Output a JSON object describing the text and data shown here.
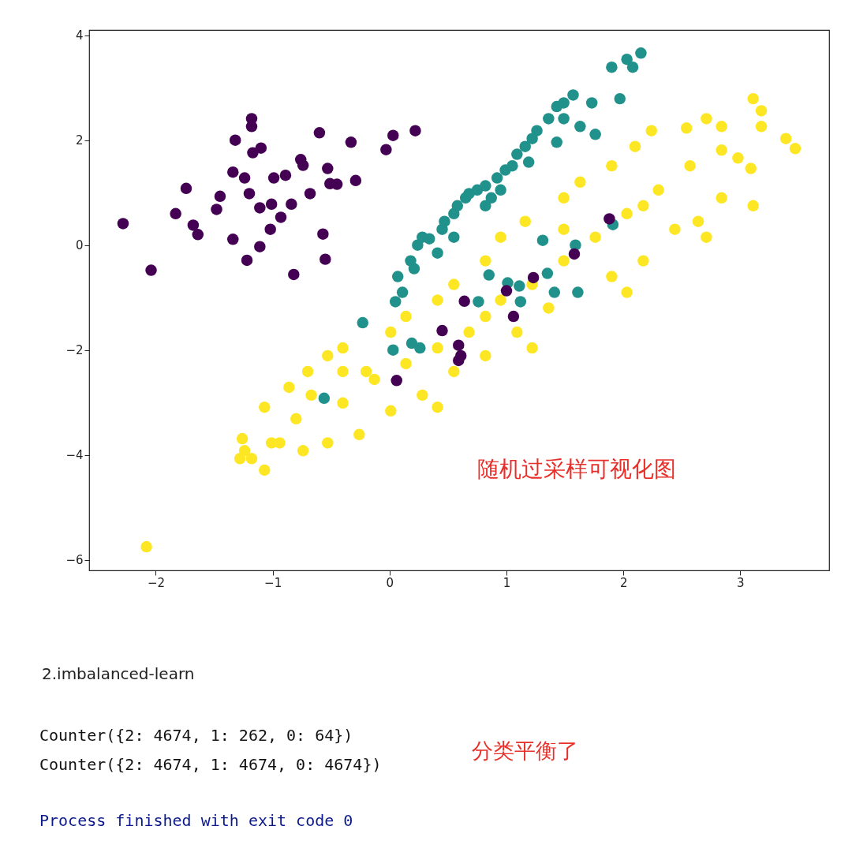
{
  "chart_data": {
    "type": "scatter",
    "xlim": [
      -2.57,
      3.76
    ],
    "ylim": [
      -6.2,
      4.1
    ],
    "xticks": [
      -2,
      -1,
      0,
      1,
      2,
      3
    ],
    "yticks": [
      -6,
      -4,
      -2,
      0,
      2,
      4
    ],
    "grid": false,
    "marker": "circle",
    "annotations": [
      "随机过采样可视化图",
      "2.imbalanced-learn",
      "Counter({2: 4674, 1: 262, 0: 64})",
      "Counter({2: 4674, 1: 4674, 0: 4674})",
      "分类平衡了",
      "Process finished with exit code 0"
    ],
    "series": [
      {
        "color": "#fde725",
        "x": [
          -2.08,
          -1.28,
          -1.26,
          -1.07,
          -1.01,
          -0.86,
          -0.7,
          -0.53,
          -0.4,
          -0.2,
          0.01,
          0.14,
          0.41,
          0.55,
          0.82,
          0.95,
          1.16,
          1.49,
          1.63,
          1.9,
          2.1,
          2.24,
          2.54,
          2.71,
          2.84,
          3.11,
          3.18,
          3.39,
          3.47,
          3.09,
          2.84,
          2.64,
          2.44,
          2.17,
          1.9,
          1.63,
          1.36,
          1.09,
          0.82,
          0.55,
          0.28,
          0.01,
          -0.26,
          -0.53,
          -0.74,
          -0.94,
          -1.18,
          -0.8,
          -1.07,
          -0.4,
          -0.13,
          0.14,
          0.41,
          0.68,
          0.95,
          1.22,
          1.49,
          1.76,
          2.03,
          2.3,
          2.57,
          2.84,
          3.18,
          -0.4,
          -0.67,
          0.82,
          1.49,
          2.17,
          2.98,
          0.41,
          1.22,
          2.03,
          2.71,
          3.11,
          -1.24
        ],
        "values": [
          -5.75,
          -4.07,
          -3.69,
          -4.29,
          -3.77,
          -2.71,
          -2.41,
          -2.11,
          -1.96,
          -2.41,
          -1.66,
          -1.36,
          -1.05,
          -0.75,
          -0.3,
          0.15,
          0.45,
          0.9,
          1.2,
          1.51,
          1.88,
          2.18,
          2.23,
          2.41,
          2.26,
          2.79,
          2.56,
          2.03,
          1.84,
          1.46,
          0.9,
          0.45,
          0.3,
          -0.3,
          -0.6,
          null,
          -1.2,
          -1.66,
          -2.11,
          -2.41,
          -2.86,
          -3.16,
          -3.61,
          -3.77,
          -3.92,
          -3.77,
          -4.07,
          -3.31,
          -3.09,
          -3.01,
          -2.56,
          -2.26,
          -1.96,
          -1.66,
          -1.05,
          -0.75,
          -0.3,
          0.15,
          0.6,
          1.05,
          1.51,
          1.81,
          2.26,
          -2.41,
          -2.86,
          -1.36,
          0.3,
          0.75,
          1.66,
          -3.09,
          -1.96,
          -0.9,
          0.15,
          0.75,
          -3.92
        ]
      },
      {
        "color": "#21918c",
        "x": [
          -0.56,
          0.03,
          0.19,
          0.26,
          0.76,
          0.85,
          1.01,
          1.11,
          1.12,
          1.31,
          1.35,
          1.41,
          1.59,
          1.61,
          1.91,
          -0.23,
          0.05,
          0.07,
          0.11,
          0.18,
          0.24,
          0.28,
          0.34,
          0.45,
          0.47,
          0.55,
          0.58,
          0.65,
          0.68,
          0.75,
          0.82,
          0.87,
          0.92,
          0.99,
          1.05,
          1.09,
          1.16,
          1.22,
          1.26,
          1.36,
          1.43,
          1.49,
          1.57,
          1.63,
          1.73,
          1.76,
          1.97,
          1.9,
          2.03,
          2.08,
          2.15,
          0.55,
          0.82,
          0.95,
          1.19,
          1.43,
          1.49,
          0.41,
          0.21
        ],
        "values": [
          -2.92,
          -2.0,
          -1.87,
          -1.96,
          -1.08,
          -0.57,
          -0.72,
          -0.78,
          -1.08,
          0.09,
          -0.54,
          -0.9,
          0.0,
          -0.9,
          0.39,
          -1.48,
          -1.08,
          -0.6,
          -0.9,
          -0.3,
          0.0,
          0.15,
          0.12,
          0.3,
          0.45,
          0.6,
          0.75,
          0.9,
          0.98,
          1.05,
          1.13,
          0.9,
          1.28,
          1.43,
          1.51,
          1.73,
          1.88,
          2.03,
          2.18,
          2.41,
          2.64,
          2.71,
          2.86,
          2.26,
          2.71,
          2.11,
          2.79,
          3.39,
          3.54,
          3.39,
          3.66,
          0.15,
          0.75,
          1.05,
          1.58,
          1.96,
          2.41,
          -0.15,
          -0.45
        ]
      },
      {
        "color": "#440154",
        "x": [
          -2.28,
          -2.04,
          -1.83,
          -1.74,
          -1.68,
          -1.66,
          -1.64,
          -1.48,
          -1.45,
          -1.34,
          -1.32,
          -1.34,
          -1.22,
          -1.18,
          -1.18,
          -1.17,
          -1.24,
          -1.2,
          -1.11,
          -1.11,
          -1.1,
          -1.04,
          -1.02,
          -1.01,
          -0.93,
          -0.99,
          -0.89,
          -0.84,
          -0.76,
          -0.74,
          -0.68,
          -0.6,
          -0.57,
          -0.55,
          -0.53,
          -0.51,
          -0.45,
          -0.33,
          -0.29,
          -0.03,
          0.03,
          0.22,
          -0.82,
          0.06,
          0.45,
          0.59,
          0.61,
          0.59,
          0.64,
          1.0,
          1.06,
          1.23,
          1.58,
          1.88
        ],
        "values": [
          0.41,
          -0.48,
          0.6,
          1.08,
          0.38,
          null,
          0.2,
          0.68,
          0.93,
          1.39,
          2.0,
          0.11,
          -0.29,
          2.41,
          2.26,
          1.76,
          1.28,
          0.98,
          0.71,
          -0.03,
          1.85,
          null,
          0.3,
          0.78,
          0.53,
          1.28,
          1.33,
          0.78,
          1.63,
          1.52,
          0.98,
          2.14,
          0.21,
          -0.27,
          1.46,
          1.17,
          1.16,
          1.96,
          1.23,
          1.82,
          2.09,
          2.18,
          -0.56,
          -2.58,
          -1.63,
          -1.91,
          -2.11,
          -2.2,
          -1.07,
          -0.87,
          -1.36,
          -0.62,
          -0.17,
          0.5
        ]
      }
    ]
  }
}
